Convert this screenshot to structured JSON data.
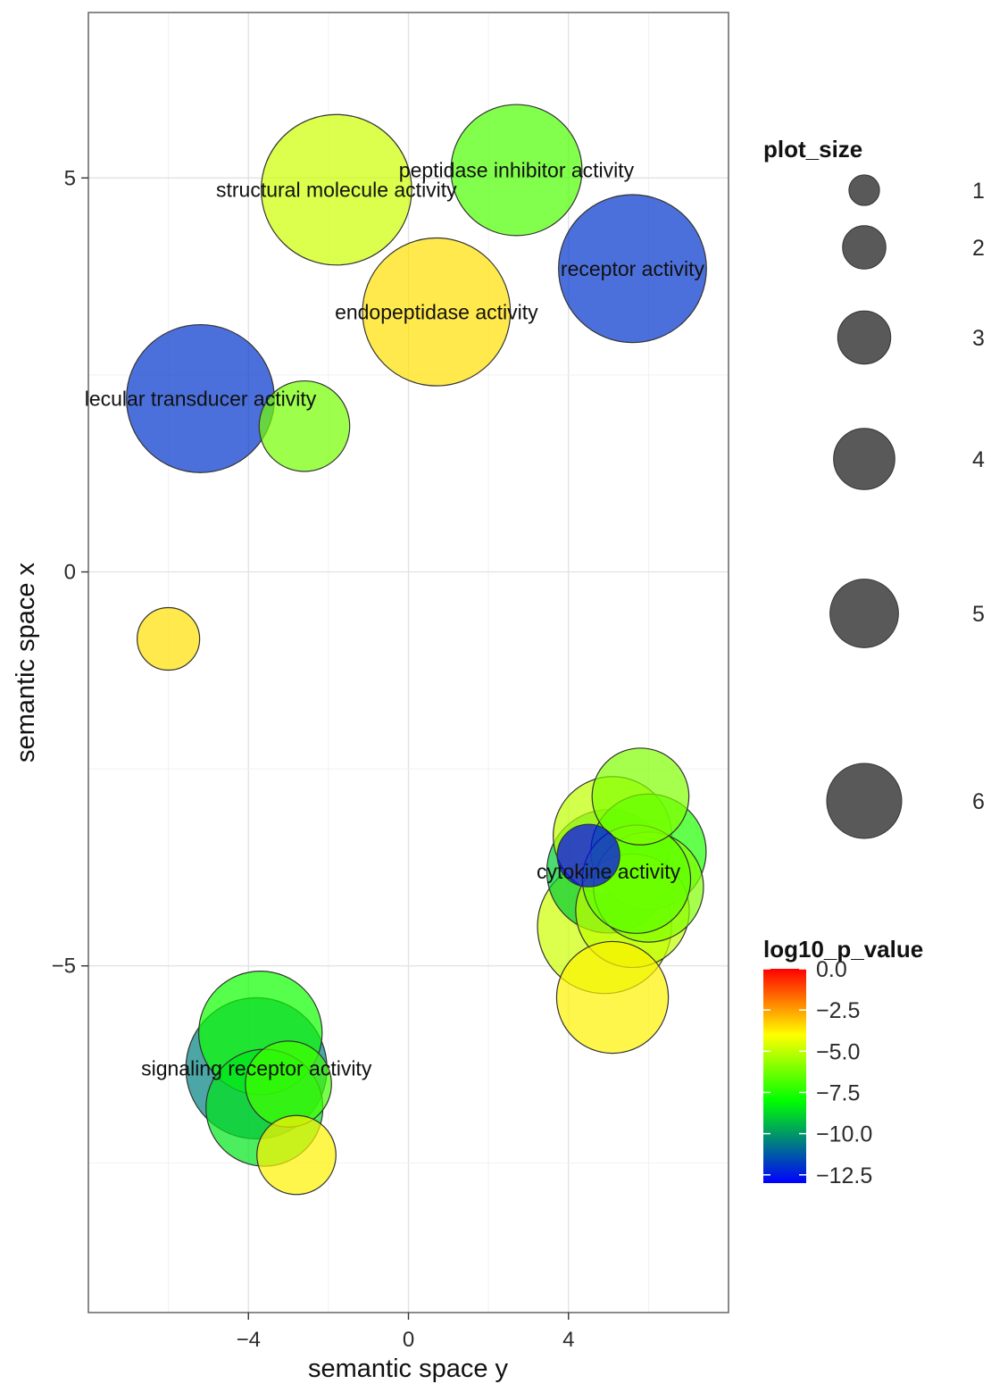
{
  "chart_data": {
    "type": "scatter",
    "xlabel": "semantic space y",
    "ylabel": "semantic space x",
    "xlim": [
      -8.0,
      8.0
    ],
    "ylim": [
      -9.4,
      7.1
    ],
    "x_ticks": [
      -4,
      0,
      4
    ],
    "x_tick_labels": [
      "−4",
      "0",
      "4"
    ],
    "y_ticks": [
      -5,
      0,
      5
    ],
    "y_tick_labels": [
      "−5",
      "0",
      "5"
    ],
    "grid": true,
    "legend_placement": "right",
    "points": [
      {
        "x": 5.6,
        "y": 3.85,
        "size": 5.6,
        "log10_p_value": -12.0,
        "label": "receptor activity"
      },
      {
        "x": -5.2,
        "y": 2.2,
        "size": 5.6,
        "log10_p_value": -12.0,
        "label": "lecular transducer activity"
      },
      {
        "x": -1.8,
        "y": 4.85,
        "size": 5.8,
        "log10_p_value": -4.8,
        "label": "structural molecule activity"
      },
      {
        "x": 2.7,
        "y": 5.1,
        "size": 4.4,
        "log10_p_value": -6.8,
        "label": "peptidase inhibitor activity"
      },
      {
        "x": 0.7,
        "y": 3.3,
        "size": 5.6,
        "log10_p_value": -3.5,
        "label": "endopeptidase activity"
      },
      {
        "x": -2.6,
        "y": 1.85,
        "size": 2.1,
        "log10_p_value": -6.2,
        "label": ""
      },
      {
        "x": -6.0,
        "y": -0.85,
        "size": 1.0,
        "log10_p_value": -3.5,
        "label": ""
      },
      {
        "x": 4.5,
        "y": -3.6,
        "size": 1.0,
        "log10_p_value": -13.0,
        "label": ""
      },
      {
        "x": 5.8,
        "y": -2.85,
        "size": 2.4,
        "log10_p_value": -6.0,
        "label": ""
      },
      {
        "x": 5.1,
        "y": -3.35,
        "size": 3.6,
        "log10_p_value": -5.0,
        "label": ""
      },
      {
        "x": 6.0,
        "y": -3.55,
        "size": 3.4,
        "log10_p_value": -7.5,
        "label": ""
      },
      {
        "x": 5.0,
        "y": -3.8,
        "size": 3.9,
        "log10_p_value": -9.0,
        "label": "cytokine activity"
      },
      {
        "x": 5.7,
        "y": -3.9,
        "size": 3.0,
        "log10_p_value": -6.5,
        "label": ""
      },
      {
        "x": 6.0,
        "y": -4.0,
        "size": 3.1,
        "log10_p_value": -6.0,
        "label": ""
      },
      {
        "x": 4.9,
        "y": -4.5,
        "size": 4.6,
        "log10_p_value": -4.8,
        "label": ""
      },
      {
        "x": 5.6,
        "y": -4.3,
        "size": 3.3,
        "log10_p_value": -5.0,
        "label": ""
      },
      {
        "x": 5.1,
        "y": -5.4,
        "size": 3.2,
        "log10_p_value": -3.8,
        "label": ""
      },
      {
        "x": -3.8,
        "y": -6.3,
        "size": 5.1,
        "log10_p_value": -10.5,
        "label": "signaling receptor activity"
      },
      {
        "x": -3.7,
        "y": -5.85,
        "size": 3.9,
        "log10_p_value": -7.8,
        "label": ""
      },
      {
        "x": -3.6,
        "y": -6.8,
        "size": 3.5,
        "log10_p_value": -8.5,
        "label": ""
      },
      {
        "x": -3.0,
        "y": -6.5,
        "size": 1.9,
        "log10_p_value": -7.0,
        "label": ""
      },
      {
        "x": -2.8,
        "y": -7.4,
        "size": 1.6,
        "log10_p_value": -3.8,
        "label": ""
      }
    ],
    "size_legend": {
      "title": "plot_size",
      "values": [
        1,
        2,
        3,
        4,
        5,
        6
      ]
    },
    "color_legend": {
      "title": "log10_p_value",
      "range": [
        -13.0,
        0.0
      ],
      "ticks": [
        0.0,
        -2.5,
        -5.0,
        -7.5,
        -10.0,
        -12.5
      ],
      "tick_labels": [
        "0.0",
        "−2.5",
        "−5.0",
        "−7.5",
        "−10.0",
        "−12.5"
      ],
      "colors": [
        "#0000ff",
        "#00ff00",
        "#ffff00",
        "#ff0000"
      ],
      "color_stops": [
        -13.0,
        -8.0,
        -4.0,
        0.0
      ]
    }
  }
}
